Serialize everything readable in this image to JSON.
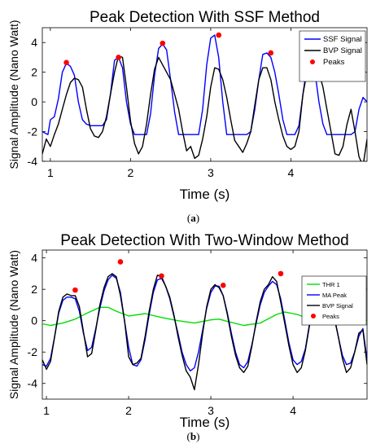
{
  "chart_data": [
    {
      "type": "line",
      "title": "Peak Detection With SSF Method",
      "xlabel": "Time (s)",
      "ylabel": "Signal Amplitude (Nano Watt)",
      "caption_open": "(",
      "caption_letter": "a",
      "caption_close": ")",
      "xlim": [
        0.9,
        4.95
      ],
      "ylim": [
        -4,
        5
      ],
      "xticks": [
        1,
        2,
        3,
        4
      ],
      "yticks": [
        -4,
        -2,
        0,
        2,
        4
      ],
      "legend": "top-right",
      "series": [
        {
          "name": "SSF Signal",
          "color": "#0000ff",
          "x": [
            0.9,
            0.97,
            1.0,
            1.05,
            1.1,
            1.15,
            1.2,
            1.25,
            1.3,
            1.35,
            1.4,
            1.45,
            1.5,
            1.55,
            1.6,
            1.65,
            1.7,
            1.75,
            1.8,
            1.85,
            1.9,
            1.95,
            2.0,
            2.05,
            2.1,
            2.15,
            2.2,
            2.25,
            2.3,
            2.35,
            2.4,
            2.45,
            2.5,
            2.55,
            2.6,
            2.65,
            2.7,
            2.75,
            2.8,
            2.85,
            2.9,
            2.95,
            3.0,
            3.05,
            3.1,
            3.15,
            3.2,
            3.25,
            3.3,
            3.35,
            3.4,
            3.45,
            3.5,
            3.55,
            3.6,
            3.65,
            3.7,
            3.75,
            3.8,
            3.85,
            3.9,
            3.95,
            4.0,
            4.05,
            4.1,
            4.15,
            4.2,
            4.25,
            4.3,
            4.35,
            4.4,
            4.45,
            4.5,
            4.55,
            4.6,
            4.65,
            4.7,
            4.75,
            4.8,
            4.85,
            4.9,
            4.95
          ],
          "y": [
            -2.0,
            -2.2,
            -1.2,
            -1.0,
            0.2,
            2.0,
            2.6,
            2.4,
            1.8,
            0.0,
            -1.2,
            -1.5,
            -1.6,
            -1.6,
            -1.6,
            -1.6,
            -1.2,
            0.5,
            2.8,
            3.0,
            2.3,
            0.0,
            -1.5,
            -2.2,
            -2.2,
            -2.2,
            -2.2,
            -0.8,
            1.8,
            3.6,
            3.9,
            3.5,
            1.5,
            -0.7,
            -2.2,
            -2.2,
            -2.2,
            -2.2,
            -2.2,
            -2.2,
            -0.5,
            2.5,
            4.3,
            4.5,
            3.0,
            0.0,
            -2.2,
            -2.2,
            -2.2,
            -2.2,
            -2.2,
            -2.2,
            -2.0,
            -0.5,
            1.5,
            3.2,
            3.3,
            3.0,
            2.0,
            0.5,
            -1.2,
            -2.2,
            -2.2,
            -2.2,
            -1.6,
            0.5,
            2.4,
            2.5,
            2.0,
            0.0,
            -1.5,
            -2.2,
            -2.2,
            -2.2,
            -2.2,
            -2.2,
            -2.2,
            -2.2,
            -2.0,
            -0.5,
            0.3,
            0.0
          ]
        },
        {
          "name": "BVP Signal",
          "color": "#000000",
          "x": [
            0.9,
            0.95,
            1.0,
            1.05,
            1.1,
            1.15,
            1.2,
            1.25,
            1.3,
            1.35,
            1.4,
            1.45,
            1.5,
            1.55,
            1.6,
            1.65,
            1.7,
            1.75,
            1.8,
            1.85,
            1.9,
            1.95,
            2.0,
            2.05,
            2.1,
            2.15,
            2.2,
            2.25,
            2.3,
            2.35,
            2.4,
            2.45,
            2.5,
            2.55,
            2.6,
            2.65,
            2.7,
            2.75,
            2.8,
            2.85,
            2.9,
            2.95,
            3.0,
            3.05,
            3.1,
            3.15,
            3.2,
            3.25,
            3.3,
            3.35,
            3.4,
            3.45,
            3.5,
            3.55,
            3.6,
            3.65,
            3.7,
            3.75,
            3.8,
            3.85,
            3.9,
            3.95,
            4.0,
            4.05,
            4.1,
            4.15,
            4.2,
            4.25,
            4.3,
            4.35,
            4.4,
            4.45,
            4.5,
            4.55,
            4.6,
            4.65,
            4.7,
            4.75,
            4.8,
            4.85,
            4.9,
            4.95
          ],
          "y": [
            -3.5,
            -2.5,
            -3.0,
            -2.2,
            -1.5,
            -0.5,
            0.5,
            1.3,
            1.6,
            1.5,
            1.0,
            -0.5,
            -1.8,
            -2.3,
            -2.4,
            -2.0,
            -1.0,
            0.5,
            2.0,
            3.1,
            3.0,
            1.0,
            -1.3,
            -2.8,
            -3.5,
            -3.0,
            -1.5,
            0.5,
            2.2,
            3.0,
            2.5,
            2.0,
            1.5,
            0.5,
            -0.5,
            -2.0,
            -3.3,
            -3.0,
            -3.8,
            -3.6,
            -2.5,
            -1.0,
            1.0,
            2.3,
            2.2,
            1.5,
            0.3,
            -1.2,
            -2.6,
            -3.0,
            -3.4,
            -2.8,
            -2.0,
            -0.2,
            1.5,
            2.3,
            2.3,
            1.5,
            0.0,
            -1.2,
            -2.3,
            -3.0,
            -3.2,
            -3.0,
            -2.0,
            0.5,
            2.0,
            2.8,
            2.7,
            2.0,
            1.0,
            -0.5,
            -2.0,
            -3.5,
            -3.6,
            -3.0,
            -1.5,
            -0.5,
            -2.0,
            -3.7,
            -4.3,
            -2.5
          ]
        }
      ],
      "peaks": {
        "name": "Peaks",
        "color": "#ff0000",
        "x": [
          1.2,
          1.85,
          2.4,
          3.1,
          3.75
        ],
        "y": [
          2.65,
          3.0,
          3.95,
          4.5,
          3.3
        ]
      }
    },
    {
      "type": "line",
      "title": "Peak Detection With Two-Window Method",
      "xlabel": "Time (s)",
      "ylabel": "Signal Amplitude (Nano Watt)",
      "caption_open": "(",
      "caption_letter": "b",
      "caption_close": ")",
      "xlim": [
        0.95,
        4.9
      ],
      "ylim": [
        -5,
        4.5
      ],
      "xticks": [
        1,
        2,
        3,
        4
      ],
      "yticks": [
        -4,
        -2,
        0,
        2,
        4
      ],
      "legend": "top-right",
      "series": [
        {
          "name": "THR 1",
          "color": "#00dd00",
          "x": [
            0.95,
            1.05,
            1.2,
            1.35,
            1.5,
            1.65,
            1.75,
            1.85,
            2.0,
            2.2,
            2.4,
            2.6,
            2.8,
            3.0,
            3.1,
            3.2,
            3.4,
            3.6,
            3.8,
            3.9,
            4.05,
            4.2,
            4.4,
            4.55,
            4.7,
            4.9
          ],
          "y": [
            -0.2,
            -0.3,
            -0.15,
            0.1,
            0.5,
            0.85,
            0.85,
            0.6,
            0.3,
            0.45,
            0.2,
            0.0,
            -0.15,
            0.05,
            0.1,
            -0.05,
            -0.3,
            -0.15,
            0.4,
            0.55,
            0.4,
            0.1,
            0.4,
            0.5,
            0.15,
            -0.05
          ]
        },
        {
          "name": "MA Peak",
          "color": "#0000ff",
          "x": [
            0.95,
            1.0,
            1.05,
            1.1,
            1.15,
            1.2,
            1.25,
            1.3,
            1.35,
            1.4,
            1.45,
            1.5,
            1.55,
            1.6,
            1.65,
            1.7,
            1.75,
            1.8,
            1.85,
            1.9,
            1.95,
            2.0,
            2.05,
            2.1,
            2.15,
            2.2,
            2.25,
            2.3,
            2.35,
            2.4,
            2.45,
            2.5,
            2.55,
            2.6,
            2.65,
            2.7,
            2.75,
            2.8,
            2.85,
            2.9,
            2.95,
            3.0,
            3.05,
            3.1,
            3.15,
            3.2,
            3.25,
            3.3,
            3.35,
            3.4,
            3.45,
            3.5,
            3.55,
            3.6,
            3.65,
            3.7,
            3.75,
            3.8,
            3.85,
            3.9,
            3.95,
            4.0,
            4.05,
            4.1,
            4.15,
            4.2,
            4.25,
            4.3,
            4.35,
            4.4,
            4.45,
            4.5,
            4.55,
            4.6,
            4.65,
            4.7,
            4.75,
            4.8,
            4.85,
            4.9
          ],
          "y": [
            -2.8,
            -2.9,
            -2.4,
            -1.0,
            0.5,
            1.3,
            1.5,
            1.5,
            1.4,
            0.6,
            -0.8,
            -1.9,
            -1.7,
            -0.5,
            0.8,
            1.9,
            2.6,
            2.9,
            2.7,
            1.8,
            0.0,
            -1.7,
            -2.8,
            -2.9,
            -2.5,
            -1.2,
            0.4,
            1.8,
            2.6,
            2.7,
            2.2,
            1.4,
            0.3,
            -0.8,
            -2.0,
            -2.8,
            -3.2,
            -3.0,
            -2.0,
            -0.6,
            0.8,
            1.8,
            2.2,
            2.2,
            1.6,
            0.5,
            -0.8,
            -2.0,
            -2.8,
            -3.0,
            -2.6,
            -1.5,
            -0.2,
            1.0,
            1.8,
            2.2,
            2.5,
            2.3,
            1.4,
            0.0,
            -1.4,
            -2.5,
            -2.8,
            -2.6,
            -1.8,
            -0.2,
            1.2,
            2.2,
            2.5,
            2.2,
            1.4,
            0.2,
            -1.0,
            -2.2,
            -2.8,
            -2.7,
            -2.0,
            -1.0,
            -0.5,
            -2.5
          ]
        },
        {
          "name": "BVP Signal",
          "color": "#000000",
          "x": [
            0.95,
            1.0,
            1.05,
            1.1,
            1.15,
            1.2,
            1.25,
            1.3,
            1.35,
            1.4,
            1.45,
            1.5,
            1.55,
            1.6,
            1.65,
            1.7,
            1.75,
            1.8,
            1.85,
            1.9,
            1.95,
            2.0,
            2.05,
            2.1,
            2.15,
            2.2,
            2.25,
            2.3,
            2.35,
            2.4,
            2.45,
            2.5,
            2.55,
            2.6,
            2.65,
            2.7,
            2.75,
            2.8,
            2.85,
            2.9,
            2.95,
            3.0,
            3.05,
            3.1,
            3.15,
            3.2,
            3.25,
            3.3,
            3.35,
            3.4,
            3.45,
            3.5,
            3.55,
            3.6,
            3.65,
            3.7,
            3.75,
            3.8,
            3.85,
            3.9,
            3.95,
            4.0,
            4.05,
            4.1,
            4.15,
            4.2,
            4.25,
            4.3,
            4.35,
            4.4,
            4.45,
            4.5,
            4.55,
            4.6,
            4.65,
            4.7,
            4.75,
            4.8,
            4.85,
            4.9
          ],
          "y": [
            -2.5,
            -3.1,
            -2.6,
            -1.0,
            0.6,
            1.5,
            1.7,
            1.6,
            1.6,
            0.9,
            -0.7,
            -2.3,
            -2.1,
            -0.6,
            1.0,
            2.1,
            2.8,
            3.0,
            2.8,
            1.6,
            0.0,
            -2.3,
            -2.8,
            -2.7,
            -2.4,
            -1.0,
            0.6,
            2.0,
            2.9,
            2.8,
            2.2,
            1.5,
            0.4,
            -1.0,
            -2.2,
            -3.2,
            -3.6,
            -4.4,
            -2.8,
            -0.8,
            0.9,
            2.0,
            2.3,
            2.1,
            1.6,
            0.4,
            -1.0,
            -2.2,
            -3.0,
            -3.3,
            -2.9,
            -1.6,
            -0.1,
            1.2,
            2.0,
            2.3,
            2.8,
            2.5,
            1.2,
            -0.2,
            -1.6,
            -2.8,
            -3.3,
            -3.0,
            -1.9,
            -0.3,
            1.3,
            2.3,
            2.6,
            2.3,
            1.5,
            0.3,
            -1.0,
            -2.4,
            -3.3,
            -3.0,
            -2.0,
            -0.8,
            -0.6,
            -2.8
          ]
        }
      ],
      "peaks": {
        "name": "Peaks",
        "color": "#ff0000",
        "x": [
          1.35,
          1.9,
          2.4,
          3.15,
          3.85
        ],
        "y": [
          1.95,
          3.75,
          2.85,
          2.25,
          3.0
        ]
      }
    }
  ]
}
